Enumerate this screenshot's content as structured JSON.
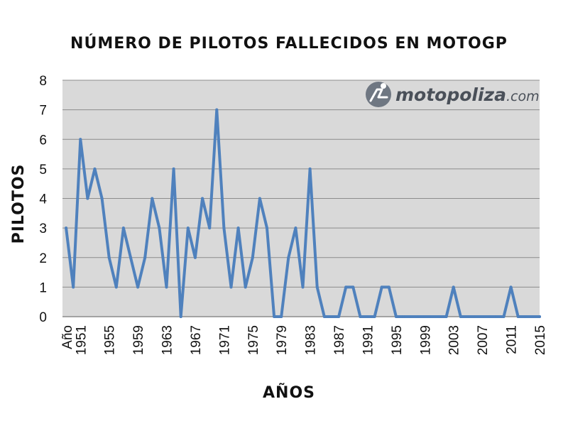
{
  "chart_data": {
    "type": "line",
    "title": "NÚMERO DE PILOTOS FALLECIDOS EN MOTOGP",
    "xlabel": "AÑOS",
    "ylabel": "PILOTOS",
    "ylim": [
      0,
      8
    ],
    "yticks": [
      "0",
      "1",
      "2",
      "3",
      "4",
      "5",
      "6",
      "7",
      "8"
    ],
    "grid": true,
    "legend": "none",
    "first_category_label": "Año",
    "x": [
      1949,
      1950,
      1951,
      1952,
      1953,
      1954,
      1955,
      1956,
      1957,
      1958,
      1959,
      1960,
      1961,
      1962,
      1963,
      1964,
      1965,
      1966,
      1967,
      1968,
      1969,
      1970,
      1971,
      1972,
      1973,
      1974,
      1975,
      1976,
      1977,
      1978,
      1979,
      1980,
      1981,
      1982,
      1983,
      1984,
      1985,
      1986,
      1987,
      1988,
      1989,
      1990,
      1991,
      1992,
      1993,
      1994,
      1995,
      1996,
      1997,
      1998,
      1999,
      2000,
      2001,
      2002,
      2003,
      2004,
      2005,
      2006,
      2007,
      2008,
      2009,
      2010,
      2011,
      2012,
      2013,
      2014,
      2015
    ],
    "xtick_labels": [
      "1951",
      "1955",
      "1959",
      "1963",
      "1967",
      "1971",
      "1975",
      "1979",
      "1983",
      "1987",
      "1991",
      "1995",
      "1999",
      "2003",
      "2007",
      "2011",
      "2015"
    ],
    "series": [
      {
        "values": [
          3,
          1,
          6,
          4,
          5,
          4,
          2,
          1,
          3,
          2,
          1,
          2,
          4,
          3,
          1,
          5,
          0,
          3,
          2,
          4,
          3,
          7,
          3,
          1,
          3,
          1,
          2,
          4,
          3,
          0,
          0,
          2,
          3,
          1,
          5,
          1,
          0,
          0,
          0,
          1,
          1,
          0,
          0,
          0,
          1,
          1,
          0,
          0,
          0,
          0,
          0,
          0,
          0,
          0,
          1,
          0,
          0,
          0,
          0,
          0,
          0,
          0,
          1,
          0,
          0,
          0,
          0
        ],
        "color": "#4f81bd"
      }
    ]
  },
  "watermark": {
    "brand": "motopoliza",
    "domain": ".com",
    "brand_color": "#4a5059",
    "icon": "motorcycle-rider-icon",
    "icon_color": "#6f7782"
  },
  "colors": {
    "plot_background": "#d9d9d9",
    "gridline": "#8c8c8c",
    "line": "#4f81bd"
  }
}
